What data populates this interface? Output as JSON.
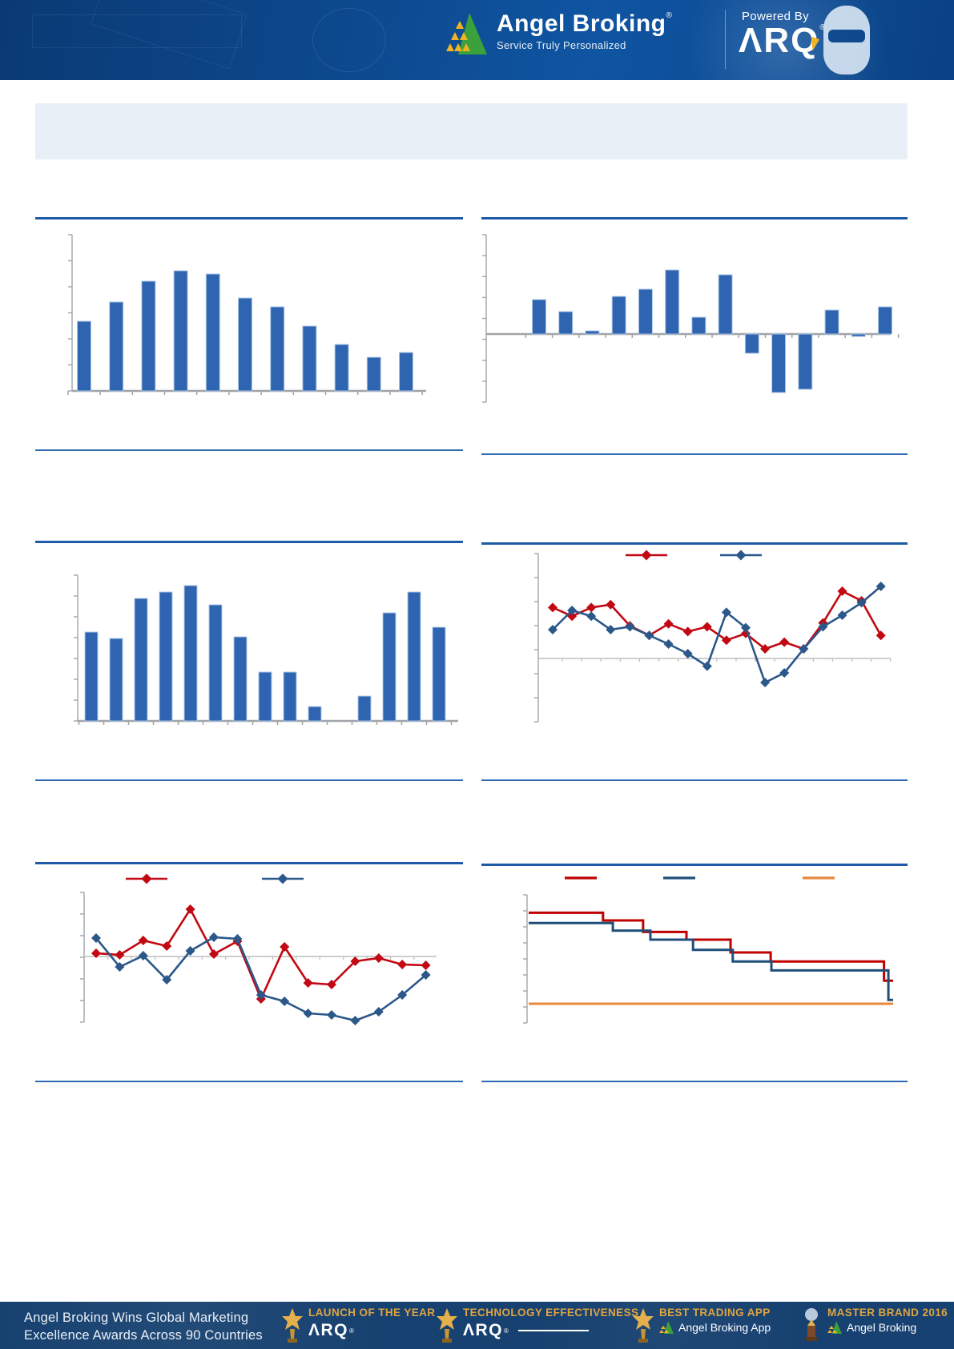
{
  "header": {
    "brand": {
      "name": "Angel Broking",
      "registered": "®",
      "tagline": "Service Truly Personalized"
    },
    "powered": {
      "label": "Powered By",
      "product": "ARQ",
      "registered": "®"
    }
  },
  "colors": {
    "header_bg": "#0d4a90",
    "footer_bg": "#174170",
    "rule_blue": "#1d5ba9",
    "bar_blue": "#2E64B0",
    "bar_edge": "#AEC8E8",
    "series_red": "#C20813",
    "series_blue": "#2B5889",
    "step_red": "#C00000",
    "step_blue": "#1F4E79",
    "step_orange": "#E8883B",
    "axis_gray": "#A5AAB0",
    "gold": "#DFA440",
    "summary_box": "#E9EFF6"
  },
  "chart_data": [
    {
      "type": "bar",
      "values": [
        87,
        111,
        137,
        150,
        146,
        116,
        105,
        81,
        58,
        42,
        48
      ],
      "units": "relative",
      "bar_color": "#2E64B0",
      "bar_edge_color": "#AEC8E8",
      "y_range": [
        0,
        160
      ],
      "grid": false,
      "legend": false
    },
    {
      "type": "bar",
      "values": [
        43,
        28,
        4,
        47,
        56,
        80,
        21,
        74,
        -24,
        -73,
        -69,
        30,
        -3,
        34
      ],
      "units": "relative",
      "bar_color": "#2E64B0",
      "bar_edge_color": "#AEC8E8",
      "y_range": [
        -90,
        110
      ],
      "grid": false,
      "legend": false
    },
    {
      "type": "bar",
      "values": [
        111,
        103,
        153,
        161,
        169,
        145,
        105,
        61,
        61,
        18,
        null,
        31,
        135,
        161,
        117
      ],
      "units": "relative",
      "bar_color": "#2E64B0",
      "bar_edge_color": "#AEC8E8",
      "y_range": [
        0,
        180
      ],
      "grid": false,
      "legend": false
    },
    {
      "type": "line",
      "marker": "diamond",
      "legend": true,
      "legend_position": "top",
      "units": "relative",
      "y_range": [
        -40,
        110
      ],
      "grid": false,
      "series": [
        {
          "name": "series-red",
          "color": "#C20813",
          "values": [
            53,
            44,
            53,
            56,
            34,
            24,
            36,
            28,
            33,
            19,
            26,
            10,
            17,
            10,
            37,
            70,
            60,
            24
          ]
        },
        {
          "name": "series-blue",
          "color": "#2B5889",
          "values": [
            30,
            50,
            44,
            30,
            33,
            24,
            15,
            5,
            -8,
            48,
            32,
            -25,
            -15,
            10,
            33,
            45,
            58,
            75
          ]
        }
      ]
    },
    {
      "type": "line",
      "marker": "diamond",
      "legend": true,
      "legend_position": "top",
      "units": "relative",
      "y_range": [
        -90,
        80
      ],
      "grid": false,
      "series": [
        {
          "name": "series-red",
          "color": "#C20813",
          "values": [
            4,
            2,
            20,
            13,
            59,
            3,
            19,
            -53,
            12,
            -33,
            -35,
            -6,
            -2,
            -10,
            -11
          ]
        },
        {
          "name": "series-blue",
          "color": "#2B5889",
          "values": [
            23,
            -13,
            1,
            -29,
            7,
            24,
            22,
            -48,
            -56,
            -71,
            -73,
            -80,
            -69,
            -48,
            -23
          ]
        }
      ]
    },
    {
      "type": "step",
      "legend": true,
      "legend_position": "top",
      "units": "relative",
      "y_range": [
        0,
        100
      ],
      "grid": false,
      "series": [
        {
          "name": "series-red",
          "color": "#C00000",
          "points": [
            [
              0,
              86
            ],
            [
              0.204,
              86
            ],
            [
              0.204,
              80
            ],
            [
              0.314,
              80
            ],
            [
              0.314,
              71
            ],
            [
              0.433,
              71
            ],
            [
              0.433,
              65
            ],
            [
              0.554,
              65
            ],
            [
              0.554,
              55
            ],
            [
              0.664,
              55
            ],
            [
              0.664,
              48
            ],
            [
              0.975,
              48
            ],
            [
              0.975,
              33
            ],
            [
              1,
              33
            ]
          ]
        },
        {
          "name": "series-blue",
          "color": "#1F4E79",
          "points": [
            [
              0,
              78
            ],
            [
              0.231,
              78
            ],
            [
              0.231,
              72
            ],
            [
              0.334,
              72
            ],
            [
              0.334,
              65
            ],
            [
              0.451,
              65
            ],
            [
              0.451,
              57
            ],
            [
              0.56,
              57
            ],
            [
              0.56,
              48
            ],
            [
              0.666,
              48
            ],
            [
              0.666,
              41
            ],
            [
              0.987,
              41
            ],
            [
              0.987,
              18
            ],
            [
              1,
              18
            ]
          ]
        },
        {
          "name": "series-orange",
          "color": "#E8883B",
          "points": [
            [
              0,
              15
            ],
            [
              1,
              15
            ]
          ]
        }
      ]
    }
  ],
  "footer": {
    "headline_line1": "Angel Broking Wins Global Marketing",
    "headline_line2": "Excellence Awards Across 90 Countries",
    "awards": [
      {
        "title": "LAUNCH OF THE YEAR",
        "subtitle": "ARQ"
      },
      {
        "title": "TECHNOLOGY EFFECTIVENESS",
        "subtitle": "ARQ"
      },
      {
        "title": "BEST TRADING APP",
        "subtitle": "Angel Broking App",
        "subtitle_bold_word": "App"
      },
      {
        "title": "MASTER BRAND 2016",
        "subtitle": "Angel Broking"
      }
    ]
  }
}
